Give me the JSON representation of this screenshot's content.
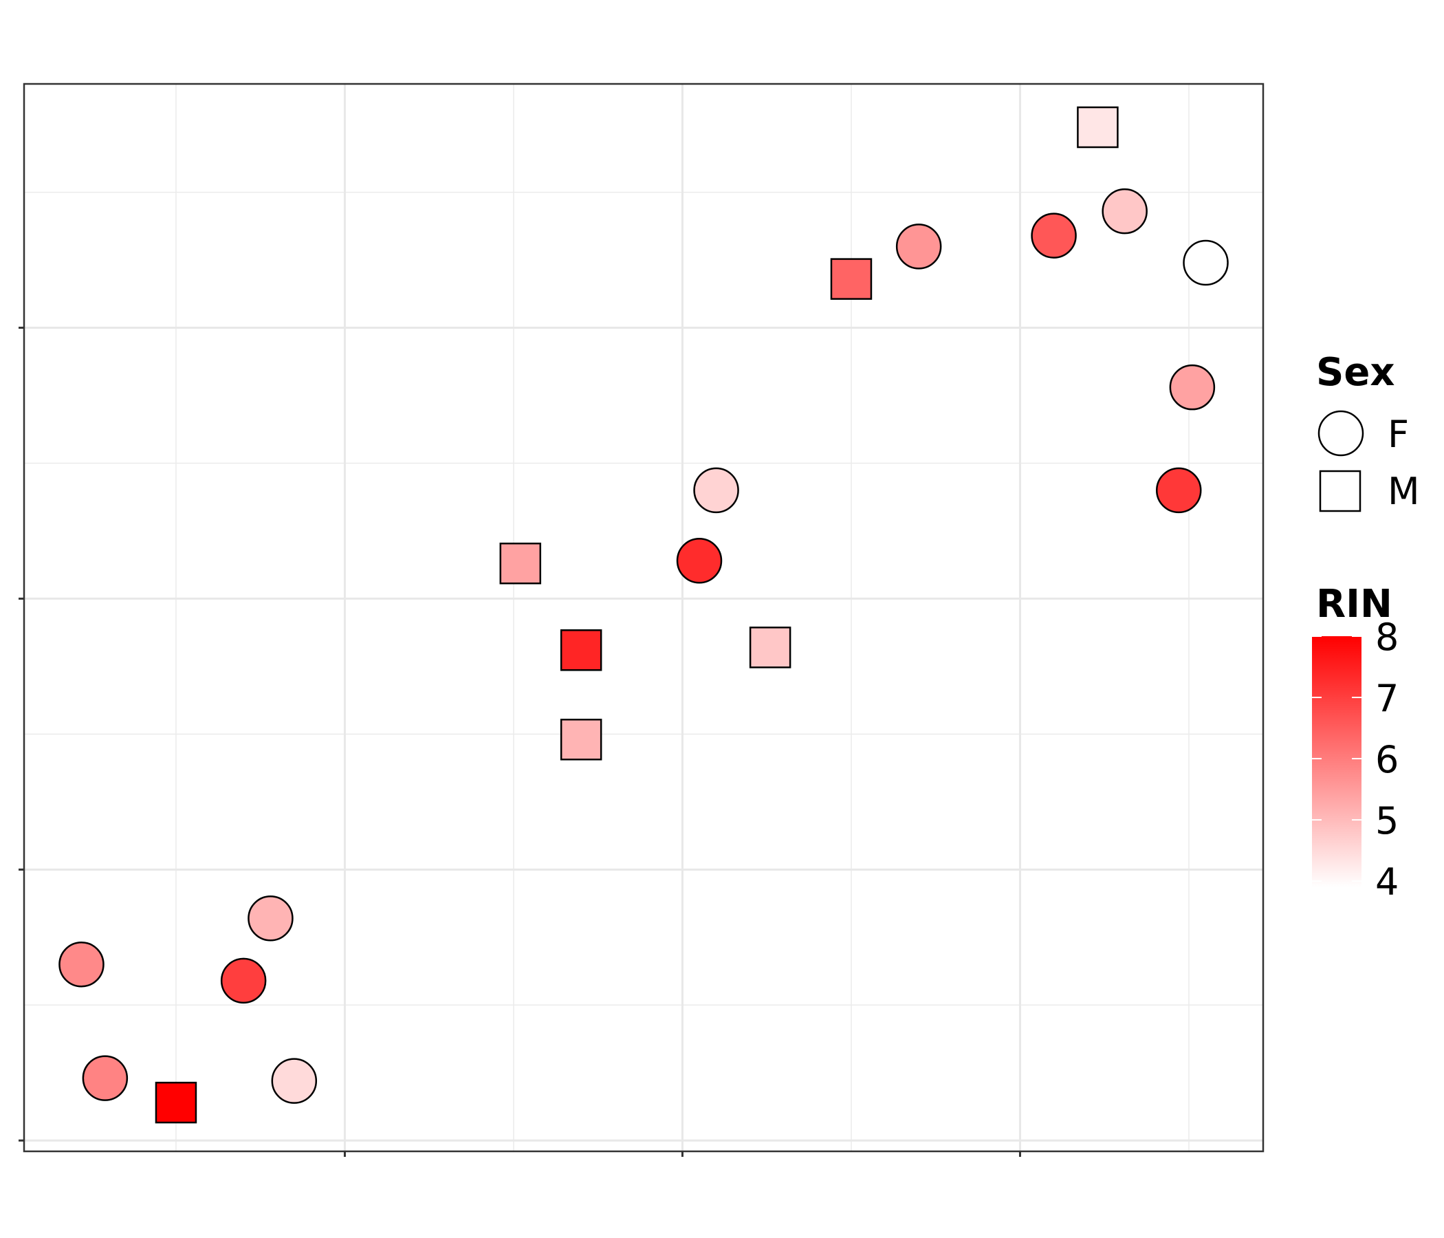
{
  "chart_data": {
    "type": "scatter",
    "title": "",
    "xlabel": "",
    "ylabel": "",
    "xlim": [
      -0.95,
      2.72
    ],
    "ylim": [
      -0.04,
      3.9
    ],
    "x_major_ticks": [
      0,
      1,
      2
    ],
    "y_major_ticks": [
      0,
      1,
      2,
      3
    ],
    "x_tick_labels": [
      "",
      "",
      ""
    ],
    "y_tick_labels": [
      "",
      "",
      "",
      ""
    ],
    "grid": true,
    "legend_position": "right",
    "legends": {
      "shape": {
        "title": "Sex",
        "entries": [
          {
            "label": "F",
            "shape": "circle"
          },
          {
            "label": "M",
            "shape": "square"
          }
        ]
      },
      "color": {
        "title": "RIN",
        "min": 3.9,
        "max": 8.0,
        "ticks": [
          8,
          7,
          6,
          5,
          4
        ],
        "low_color": "#FFFFFF",
        "high_color": "#FF0000"
      }
    },
    "points": [
      {
        "x": -0.78,
        "y": 0.65,
        "sex": "F",
        "rin": 5.8
      },
      {
        "x": -0.71,
        "y": 0.23,
        "sex": "F",
        "rin": 5.9
      },
      {
        "x": -0.5,
        "y": 0.14,
        "sex": "M",
        "rin": 8.0
      },
      {
        "x": -0.3,
        "y": 0.59,
        "sex": "F",
        "rin": 7.0
      },
      {
        "x": -0.22,
        "y": 0.82,
        "sex": "F",
        "rin": 5.1
      },
      {
        "x": -0.15,
        "y": 0.22,
        "sex": "F",
        "rin": 4.5
      },
      {
        "x": 0.52,
        "y": 2.13,
        "sex": "M",
        "rin": 5.4
      },
      {
        "x": 0.7,
        "y": 1.81,
        "sex": "M",
        "rin": 7.4
      },
      {
        "x": 0.7,
        "y": 1.48,
        "sex": "M",
        "rin": 5.1
      },
      {
        "x": 1.05,
        "y": 2.14,
        "sex": "F",
        "rin": 7.3
      },
      {
        "x": 1.1,
        "y": 2.4,
        "sex": "F",
        "rin": 4.6
      },
      {
        "x": 1.26,
        "y": 1.82,
        "sex": "M",
        "rin": 4.8
      },
      {
        "x": 1.5,
        "y": 3.18,
        "sex": "M",
        "rin": 6.4
      },
      {
        "x": 1.7,
        "y": 3.3,
        "sex": "F",
        "rin": 5.6
      },
      {
        "x": 2.1,
        "y": 3.34,
        "sex": "F",
        "rin": 6.6
      },
      {
        "x": 2.23,
        "y": 3.74,
        "sex": "M",
        "rin": 4.3
      },
      {
        "x": 2.31,
        "y": 3.43,
        "sex": "F",
        "rin": 4.8
      },
      {
        "x": 2.47,
        "y": 2.4,
        "sex": "F",
        "rin": 7.1
      },
      {
        "x": 2.51,
        "y": 2.78,
        "sex": "F",
        "rin": 5.4
      },
      {
        "x": 2.55,
        "y": 3.24,
        "sex": "F",
        "rin": 3.9
      }
    ]
  }
}
